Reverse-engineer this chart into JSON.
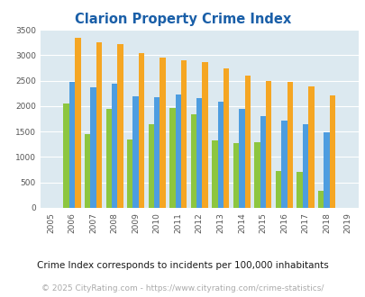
{
  "title": "Clarion Property Crime Index",
  "years": [
    2005,
    2006,
    2007,
    2008,
    2009,
    2010,
    2011,
    2012,
    2013,
    2014,
    2015,
    2016,
    2017,
    2018,
    2019
  ],
  "clarion": [
    0,
    2050,
    1450,
    1950,
    1350,
    1650,
    1960,
    1840,
    1320,
    1270,
    1290,
    720,
    700,
    340,
    0
  ],
  "pennsylvania": [
    0,
    2470,
    2370,
    2440,
    2200,
    2180,
    2230,
    2160,
    2080,
    1950,
    1800,
    1720,
    1640,
    1490,
    0
  ],
  "national": [
    0,
    3340,
    3260,
    3210,
    3040,
    2950,
    2900,
    2860,
    2740,
    2600,
    2500,
    2470,
    2380,
    2210,
    0
  ],
  "clarion_color": "#8dc63f",
  "pennsylvania_color": "#4d9de0",
  "national_color": "#f5a623",
  "bg_color": "#dce9f0",
  "ylim": [
    0,
    3500
  ],
  "yticks": [
    0,
    500,
    1000,
    1500,
    2000,
    2500,
    3000,
    3500
  ],
  "subtitle": "Crime Index corresponds to incidents per 100,000 inhabitants",
  "footer": "© 2025 CityRating.com - https://www.cityrating.com/crime-statistics/",
  "title_color": "#1a5fa8",
  "subtitle_color": "#1a1a1a",
  "footer_color": "#aaaaaa"
}
